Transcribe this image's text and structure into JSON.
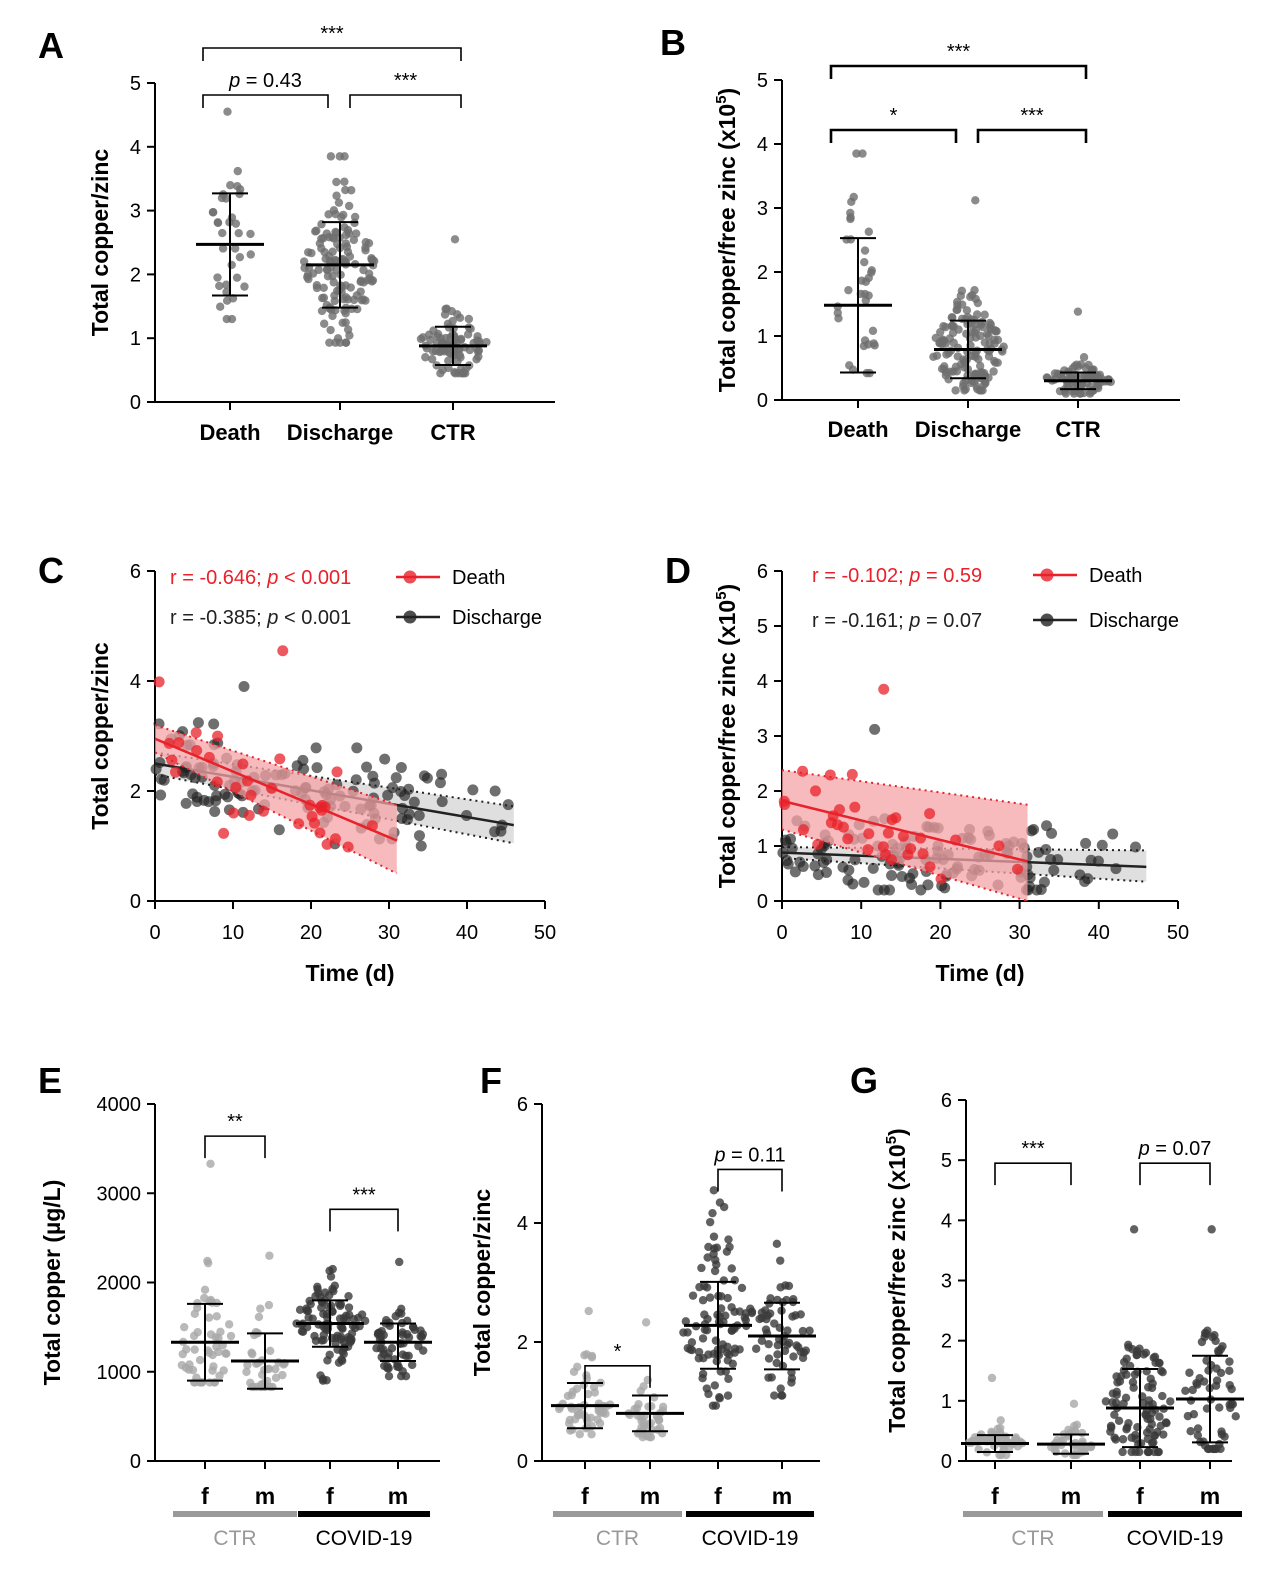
{
  "figure": "multi-panel scatter/dot plots",
  "chart_data": [
    {
      "panel": "A",
      "type": "scatter",
      "ylabel": "Total copper/zinc",
      "ylim": [
        0,
        5
      ],
      "yticks": [
        0,
        1,
        2,
        3,
        4,
        5
      ],
      "categories": [
        "Death",
        "Discharge",
        "CTR"
      ],
      "groups": [
        {
          "name": "Death",
          "mean": 2.47,
          "sd": 0.8,
          "n": 35,
          "min": 1.3,
          "max": 4.55,
          "color": "#6e6e6e"
        },
        {
          "name": "Discharge",
          "mean": 2.15,
          "sd": 0.67,
          "n": 140,
          "min": 0.93,
          "max": 3.85,
          "color": "#6e6e6e"
        },
        {
          "name": "CTR",
          "mean": 0.88,
          "sd": 0.3,
          "n": 90,
          "min": 0.45,
          "max": 2.55,
          "color": "#6e6e6e"
        }
      ],
      "comparisons": [
        {
          "from": 0,
          "to": 2,
          "label": "***",
          "level": 2
        },
        {
          "from": 0,
          "to": 1,
          "label": "p = 0.43",
          "level": 1
        },
        {
          "from": 1,
          "to": 2,
          "label": "***",
          "level": 1
        }
      ]
    },
    {
      "panel": "B",
      "type": "scatter",
      "ylabel": "Total copper/free zinc (x10",
      "ylabel_sup": "5",
      "ylim": [
        0,
        5
      ],
      "yticks": [
        0,
        1,
        2,
        3,
        4,
        5
      ],
      "categories": [
        "Death",
        "Discharge",
        "CTR"
      ],
      "groups": [
        {
          "name": "Death",
          "mean": 1.48,
          "sd": 1.05,
          "n": 35,
          "min": 0.42,
          "max": 3.85,
          "color": "#6e6e6e"
        },
        {
          "name": "Discharge",
          "mean": 0.79,
          "sd": 0.45,
          "n": 140,
          "min": 0.15,
          "max": 3.12,
          "color": "#6e6e6e"
        },
        {
          "name": "CTR",
          "mean": 0.3,
          "sd": 0.13,
          "n": 90,
          "min": 0.1,
          "max": 1.38,
          "color": "#6e6e6e"
        }
      ],
      "comparisons": [
        {
          "from": 0,
          "to": 2,
          "label": "***",
          "level": 2
        },
        {
          "from": 0,
          "to": 1,
          "label": "*",
          "level": 1
        },
        {
          "from": 1,
          "to": 2,
          "label": "***",
          "level": 1
        }
      ]
    },
    {
      "panel": "C",
      "type": "scatter",
      "xlabel": "Time (d)",
      "ylabel": "Total copper/zinc",
      "xlim": [
        0,
        50
      ],
      "ylim": [
        0,
        6
      ],
      "xticks": [
        0,
        10,
        20,
        30,
        40,
        50
      ],
      "yticks": [
        0,
        2,
        4,
        6
      ],
      "series": [
        {
          "name": "Death",
          "stat": "r = -0.646; p < 0.001",
          "r": "-0.646",
          "p": "< 0.001",
          "color": "#e8212a",
          "n": 35,
          "xmax": 31,
          "fit": {
            "x": [
              0,
              31
            ],
            "y": [
              2.95,
              1.1
            ]
          },
          "ci_low": [
            2.7,
            0.5
          ],
          "ci_high": [
            3.2,
            1.75
          ],
          "y_min": 0.9,
          "y_max": 4.55
        },
        {
          "name": "Discharge",
          "stat": "r = -0.385; p < 0.001",
          "r": "-0.385",
          "p": "< 0.001",
          "color": "#222222",
          "n": 130,
          "xmax": 46,
          "fit": {
            "x": [
              0,
              46
            ],
            "y": [
              2.5,
              1.38
            ]
          },
          "ci_low": [
            2.3,
            1.05
          ],
          "ci_high": [
            2.7,
            1.72
          ],
          "y_min": 1.0,
          "y_max": 3.9
        }
      ]
    },
    {
      "panel": "D",
      "type": "scatter",
      "xlabel": "Time (d)",
      "ylabel": "Total copper/free zinc (x10",
      "ylabel_sup": "5",
      "xlim": [
        0,
        50
      ],
      "ylim": [
        0,
        6
      ],
      "xticks": [
        0,
        10,
        20,
        30,
        40,
        50
      ],
      "yticks": [
        0,
        1,
        2,
        3,
        4,
        5,
        6
      ],
      "series": [
        {
          "name": "Death",
          "stat": "r = -0.102; p = 0.59",
          "r": "-0.102",
          "p": "= 0.59",
          "color": "#e8212a",
          "n": 35,
          "xmax": 31,
          "fit": {
            "x": [
              0,
              31
            ],
            "y": [
              1.82,
              0.72
            ]
          },
          "ci_low": [
            1.3,
            0.0
          ],
          "ci_high": [
            2.38,
            1.75
          ],
          "y_min": 0.4,
          "y_max": 3.85
        },
        {
          "name": "Discharge",
          "stat": "r = -0.161; p = 0.07",
          "r": "-0.161",
          "p": "= 0.07",
          "color": "#222222",
          "n": 130,
          "xmax": 46,
          "fit": {
            "x": [
              0,
              46
            ],
            "y": [
              0.88,
              0.62
            ]
          },
          "ci_low": [
            0.78,
            0.35
          ],
          "ci_high": [
            0.98,
            0.92
          ],
          "y_min": 0.2,
          "y_max": 3.12
        }
      ]
    },
    {
      "panel": "E",
      "type": "scatter",
      "ylabel": "Total copper (µg/L)",
      "ylim": [
        0,
        4000
      ],
      "yticks": [
        0,
        1000,
        2000,
        3000,
        4000
      ],
      "categories": [
        "f",
        "m",
        "f",
        "m"
      ],
      "group_labels": [
        {
          "label": "CTR",
          "color": "#999999"
        },
        {
          "label": "COVID-19",
          "color": "#000000"
        }
      ],
      "groups": [
        {
          "name": "CTR f",
          "mean": 1330,
          "sd": 430,
          "n": 55,
          "min": 880,
          "max": 3330,
          "color": "#a8a8a8"
        },
        {
          "name": "CTR m",
          "mean": 1120,
          "sd": 310,
          "n": 40,
          "min": 830,
          "max": 2300,
          "color": "#a8a8a8"
        },
        {
          "name": "COVID-19 f",
          "mean": 1540,
          "sd": 260,
          "n": 100,
          "min": 900,
          "max": 2150,
          "color": "#3a3a3a"
        },
        {
          "name": "COVID-19 m",
          "mean": 1330,
          "sd": 210,
          "n": 60,
          "min": 950,
          "max": 2230,
          "color": "#3a3a3a"
        }
      ],
      "comparisons": [
        {
          "from": 0,
          "to": 1,
          "label": "**",
          "y": 3640
        },
        {
          "from": 2,
          "to": 3,
          "label": "***",
          "y": 2820
        }
      ]
    },
    {
      "panel": "F",
      "type": "scatter",
      "ylabel": "Total copper/zinc",
      "ylim": [
        0,
        6
      ],
      "yticks": [
        0,
        2,
        4,
        6
      ],
      "categories": [
        "f",
        "m",
        "f",
        "m"
      ],
      "group_labels": [
        {
          "label": "CTR",
          "color": "#999999"
        },
        {
          "label": "COVID-19",
          "color": "#000000"
        }
      ],
      "groups": [
        {
          "name": "CTR f",
          "mean": 0.93,
          "sd": 0.38,
          "n": 55,
          "min": 0.45,
          "max": 2.52,
          "color": "#a8a8a8"
        },
        {
          "name": "CTR m",
          "mean": 0.8,
          "sd": 0.3,
          "n": 40,
          "min": 0.4,
          "max": 2.33,
          "color": "#a8a8a8"
        },
        {
          "name": "COVID-19 f",
          "mean": 2.28,
          "sd": 0.73,
          "n": 100,
          "min": 0.93,
          "max": 4.55,
          "color": "#3a3a3a"
        },
        {
          "name": "COVID-19 m",
          "mean": 2.1,
          "sd": 0.56,
          "n": 60,
          "min": 1.1,
          "max": 3.65,
          "color": "#3a3a3a"
        }
      ],
      "comparisons": [
        {
          "from": 0,
          "to": 1,
          "label": "*",
          "y": 1.6
        },
        {
          "from": 2,
          "to": 3,
          "label": "p = 0.11",
          "y": 4.9
        }
      ]
    },
    {
      "panel": "G",
      "type": "scatter",
      "ylabel": "Total copper/free zinc (x10",
      "ylabel_sup": "5",
      "ylim": [
        0,
        6
      ],
      "yticks": [
        0,
        1,
        2,
        3,
        4,
        5,
        6
      ],
      "categories": [
        "f",
        "m",
        "f",
        "m"
      ],
      "group_labels": [
        {
          "label": "CTR",
          "color": "#999999"
        },
        {
          "label": "COVID-19",
          "color": "#000000"
        }
      ],
      "groups": [
        {
          "name": "CTR f",
          "mean": 0.29,
          "sd": 0.14,
          "n": 55,
          "min": 0.1,
          "max": 1.38,
          "color": "#a8a8a8"
        },
        {
          "name": "CTR m",
          "mean": 0.28,
          "sd": 0.16,
          "n": 40,
          "min": 0.1,
          "max": 0.95,
          "color": "#a8a8a8"
        },
        {
          "name": "COVID-19 f",
          "mean": 0.88,
          "sd": 0.65,
          "n": 100,
          "min": 0.15,
          "max": 3.85,
          "color": "#3a3a3a"
        },
        {
          "name": "COVID-19 m",
          "mean": 1.03,
          "sd": 0.72,
          "n": 60,
          "min": 0.2,
          "max": 3.85,
          "color": "#3a3a3a"
        }
      ],
      "comparisons": [
        {
          "from": 0,
          "to": 1,
          "label": "***",
          "y": 4.95
        },
        {
          "from": 2,
          "to": 3,
          "label": "p = 0.07",
          "y": 4.95
        }
      ]
    }
  ]
}
